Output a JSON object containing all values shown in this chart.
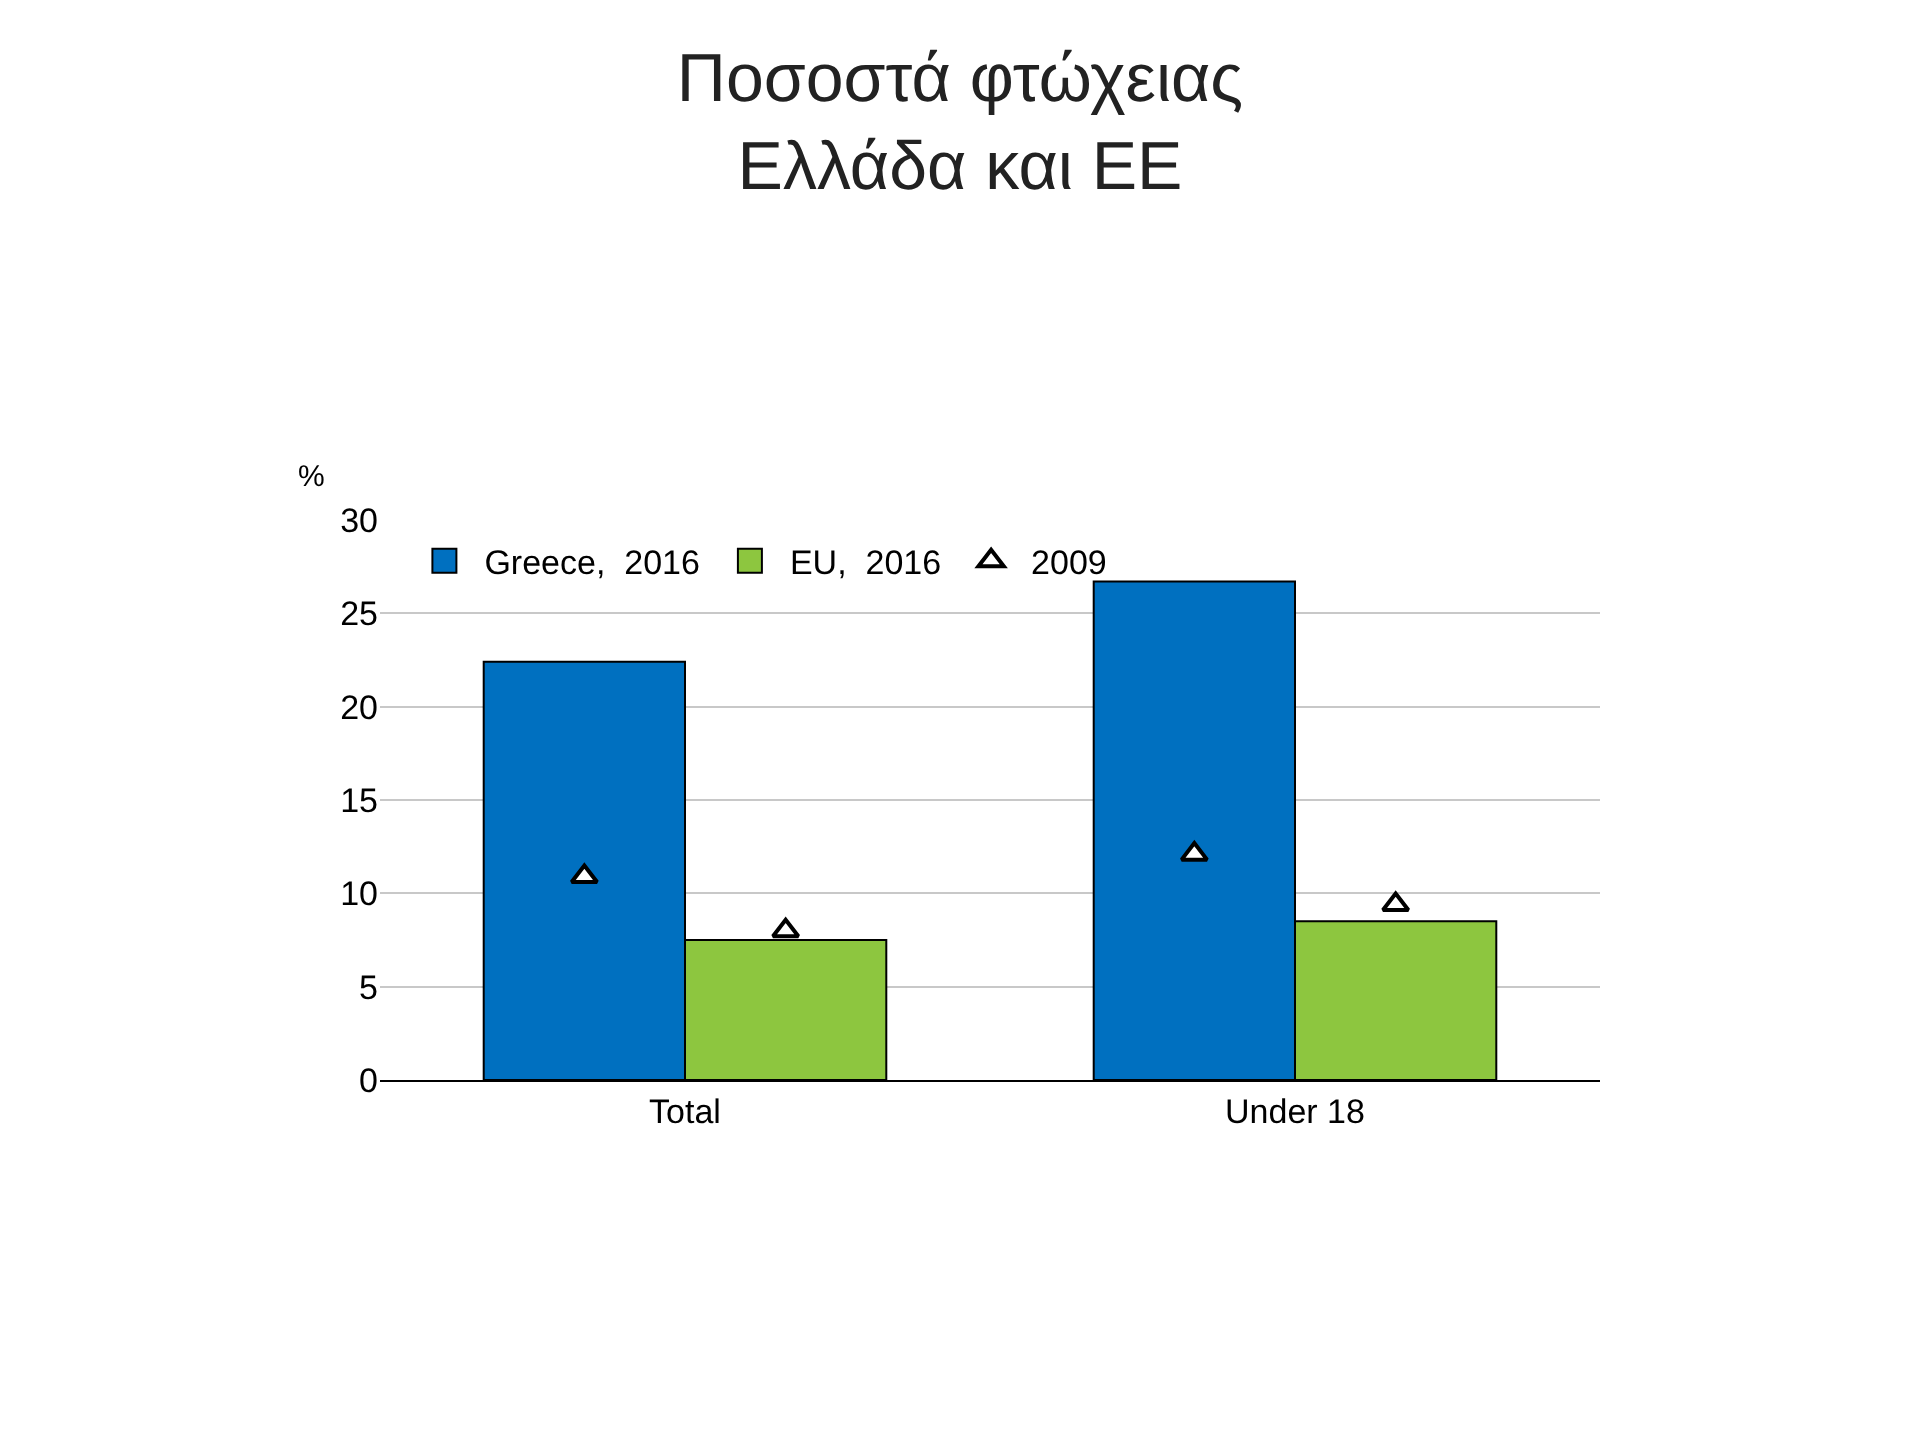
{
  "chart_data": {
    "type": "bar",
    "title": "Ποσοστά φτώχειας\nΕλλάδα και ΕΕ",
    "ylabel": "%",
    "categories": [
      "Total",
      "Under 18"
    ],
    "series": [
      {
        "name": "Greece,  2016",
        "color": "#0070c0",
        "values": [
          22.4,
          26.7
        ]
      },
      {
        "name": "EU,  2016",
        "color": "#8dc63f",
        "values": [
          7.5,
          8.5
        ]
      },
      {
        "name": "2009",
        "type": "scatter",
        "color": "#ffffff",
        "marker": "triangle",
        "x": [
          "Total",
          "Total",
          "Under 18",
          "Under 18"
        ],
        "values": [
          10.9,
          8.0,
          12.1,
          9.4
        ]
      }
    ],
    "ylim": [
      0,
      30
    ],
    "yticks": [
      0,
      5,
      10,
      15,
      20,
      25,
      30
    ],
    "grid": "y",
    "legend": "top"
  }
}
